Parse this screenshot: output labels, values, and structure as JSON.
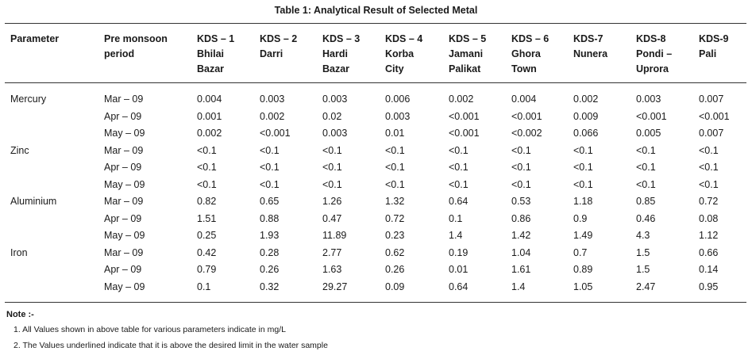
{
  "title": "Table 1: Analytical Result of Selected Metal",
  "headers": [
    [
      "Parameter"
    ],
    [
      "Pre monsoon",
      "period"
    ],
    [
      "KDS – 1",
      "Bhilai",
      "Bazar"
    ],
    [
      "KDS – 2",
      "Darri"
    ],
    [
      "KDS – 3",
      "Hardi",
      "Bazar"
    ],
    [
      "KDS – 4",
      "Korba",
      "City"
    ],
    [
      "KDS – 5",
      "Jamani",
      "Palikat"
    ],
    [
      "KDS – 6",
      "Ghora",
      "Town"
    ],
    [
      "KDS-7",
      "Nunera"
    ],
    [
      "KDS-8",
      "Pondi –",
      "Uprora"
    ],
    [
      "KDS-9",
      "Pali"
    ]
  ],
  "rows": [
    [
      "Mercury",
      "Mar – 09",
      "0.004",
      "0.003",
      "0.003",
      "0.006",
      "0.002",
      "0.004",
      "0.002",
      "0.003",
      "0.007"
    ],
    [
      "",
      "Apr – 09",
      "0.001",
      "0.002",
      "0.02",
      "0.003",
      "<0.001",
      "<0.001",
      "0.009",
      "<0.001",
      "<0.001"
    ],
    [
      "",
      "May – 09",
      "0.002",
      "<0.001",
      "0.003",
      "0.01",
      "<0.001",
      "<0.002",
      "0.066",
      "0.005",
      "0.007"
    ],
    [
      "Zinc",
      "Mar – 09",
      "<0.1",
      "<0.1",
      "<0.1",
      "<0.1",
      "<0.1",
      "<0.1",
      "<0.1",
      "<0.1",
      "<0.1"
    ],
    [
      "",
      "Apr – 09",
      "<0.1",
      "<0.1",
      "<0.1",
      "<0.1",
      "<0.1",
      "<0.1",
      "<0.1",
      "<0.1",
      "<0.1"
    ],
    [
      "",
      "May – 09",
      "<0.1",
      "<0.1",
      "<0.1",
      "<0.1",
      "<0.1",
      "<0.1",
      "<0.1",
      "<0.1",
      "<0.1"
    ],
    [
      "Aluminium",
      "Mar – 09",
      "0.82",
      "0.65",
      "1.26",
      "1.32",
      "0.64",
      "0.53",
      "1.18",
      "0.85",
      "0.72"
    ],
    [
      "",
      "Apr – 09",
      "1.51",
      "0.88",
      "0.47",
      "0.72",
      "0.1",
      "0.86",
      "0.9",
      "0.46",
      "0.08"
    ],
    [
      "",
      "May – 09",
      "0.25",
      "1.93",
      "11.89",
      "0.23",
      "1.4",
      "1.42",
      "1.49",
      "4.3",
      "1.12"
    ],
    [
      "Iron",
      "Mar – 09",
      "0.42",
      "0.28",
      "2.77",
      "0.62",
      "0.19",
      "1.04",
      "0.7",
      "1.5",
      "0.66"
    ],
    [
      "",
      "Apr – 09",
      "0.79",
      "0.26",
      "1.63",
      "0.26",
      "0.01",
      "1.61",
      "0.89",
      "1.5",
      "0.14"
    ],
    [
      "",
      "May – 09",
      "0.1",
      "0.32",
      "29.27",
      "0.09",
      "0.64",
      "1.4",
      "1.05",
      "2.47",
      "0.95"
    ]
  ],
  "note": {
    "title": "Note :-",
    "items": [
      "1. All Values shown in above table for various parameters indicate in mg/L",
      "2. The Values underlined indicate that it is above the desired limit in the water sample"
    ]
  }
}
